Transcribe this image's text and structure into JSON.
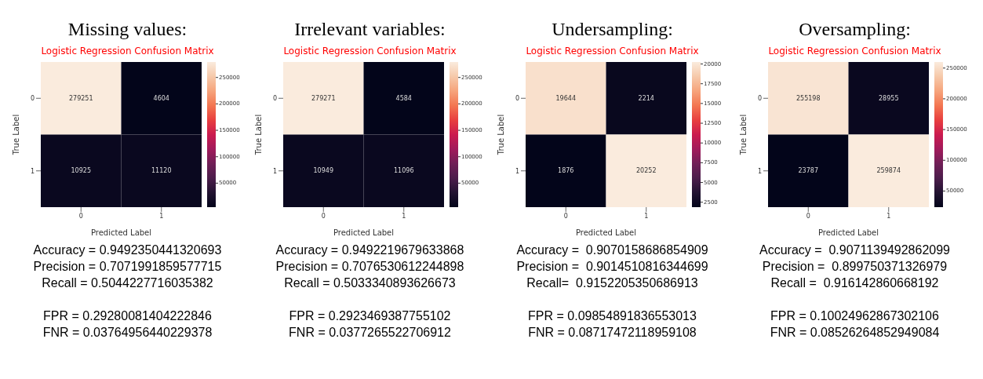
{
  "chart_data": [
    {
      "type": "heatmap",
      "title": "Missing values:",
      "subtitle": "Logistic Regression Confusion Matrix",
      "xlabel": "Predicted Label",
      "ylabel": "True Label",
      "categories": [
        "0",
        "1"
      ],
      "y_categories": [
        "0",
        "1"
      ],
      "cells": [
        [
          279251,
          4604
        ],
        [
          10925,
          11120
        ]
      ],
      "clim": [
        4604,
        279251
      ],
      "cticks": [
        50000,
        100000,
        150000,
        200000,
        250000
      ],
      "data_labels": true,
      "annotations": [
        "Accuracy = 0.9492350441320693",
        "Precision = 0.7071991859577715",
        "Recall = 0.5044227716035382",
        "FPR = 0.29280081404222846",
        "FNR = 0.03764956440229378"
      ]
    },
    {
      "type": "heatmap",
      "title": "Irrelevant variables:",
      "subtitle": "Logistic Regression Confusion Matrix",
      "xlabel": "Predicted Label",
      "ylabel": "True Label",
      "categories": [
        "0",
        "1"
      ],
      "y_categories": [
        "0",
        "1"
      ],
      "cells": [
        [
          279271,
          4584
        ],
        [
          10949,
          11096
        ]
      ],
      "clim": [
        4584,
        279271
      ],
      "cticks": [
        50000,
        100000,
        150000,
        200000,
        250000
      ],
      "data_labels": true,
      "annotations": [
        "Accuracy = 0.9492219679633868",
        "Precision = 0.7076530612244898",
        "Recall = 0.5033340893626673",
        "FPR = 0.2923469387755102",
        "FNR = 0.0377265522706912"
      ]
    },
    {
      "type": "heatmap",
      "title": "Undersampling:",
      "subtitle": "Logistic Regression Confusion Matrix",
      "xlabel": "Predicted Label",
      "ylabel": "True Label",
      "categories": [
        "0",
        "1"
      ],
      "y_categories": [
        "0",
        "1"
      ],
      "cells": [
        [
          19644,
          2214
        ],
        [
          1876,
          20252
        ]
      ],
      "clim": [
        1876,
        20252
      ],
      "cticks": [
        2500,
        5000,
        7500,
        10000,
        12500,
        15000,
        17500,
        20000
      ],
      "data_labels": true,
      "annotations": [
        "Accuracy =  0.9070158686854909",
        "Precision =  0.9014510816344699",
        "Recall=  0.9152205350686913",
        "FPR = 0.09854891836553013",
        "FNR = 0.08717472118959108"
      ]
    },
    {
      "type": "heatmap",
      "title": "Oversampling:",
      "subtitle": "Logistic Regression Confusion Matrix",
      "xlabel": "Predicted Label",
      "ylabel": "True Label",
      "categories": [
        "0",
        "1"
      ],
      "y_categories": [
        "0",
        "1"
      ],
      "cells": [
        [
          255198,
          28955
        ],
        [
          23787,
          259874
        ]
      ],
      "clim": [
        23787,
        259874
      ],
      "cticks": [
        50000,
        100000,
        150000,
        200000,
        250000
      ],
      "data_labels": true,
      "annotations": [
        "Accuracy =  0.9071139492862099",
        "Precision =  0.899750371326979",
        "Recall =  0.916142860668192",
        "FPR = 0.10024962867302106",
        "FNR = 0.08526264852949084"
      ]
    }
  ]
}
